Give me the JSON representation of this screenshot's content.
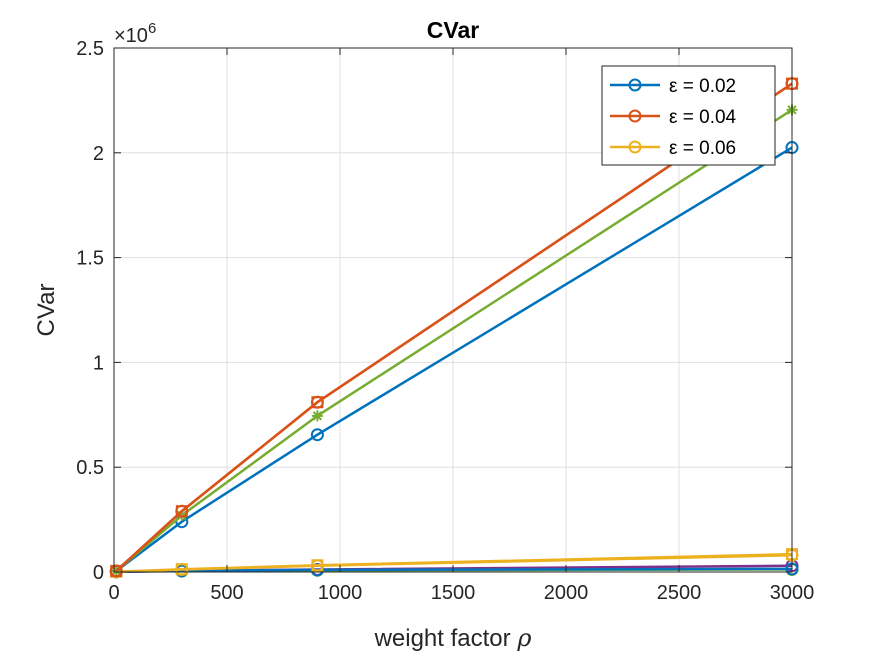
{
  "chart_data": {
    "type": "line",
    "title": "CVar",
    "xlabel": "weight factor",
    "xlabel_symbol": "ρ",
    "ylabel": "CVar",
    "y_multiplier_base": "×10",
    "y_multiplier_exp": "6",
    "xlim": [
      0,
      3000
    ],
    "ylim": [
      0,
      2.5
    ],
    "xticks": [
      0,
      500,
      1000,
      1500,
      2000,
      2500,
      3000
    ],
    "yticks": [
      0,
      0.5,
      1,
      1.5,
      2,
      2.5
    ],
    "grid": true,
    "legend_position": "top-right",
    "x": [
      10,
      300,
      900,
      3000
    ],
    "series": [
      {
        "name": "ε  = 0.02",
        "color": "#0072BD",
        "marker": "circle",
        "in_legend": true,
        "values": [
          0.005,
          0.24,
          0.655,
          2.025
        ]
      },
      {
        "name": "ε  = 0.04",
        "color": "#D95319",
        "marker": "circle",
        "in_legend": true,
        "values": [
          0.005,
          0.29,
          0.81,
          2.33
        ]
      },
      {
        "name": "ε  = 0.06",
        "color": "#EDB120",
        "marker": "circle",
        "in_legend": true,
        "values": [
          0.001,
          0.012,
          0.03,
          0.08
        ]
      },
      {
        "color": "#D95319",
        "marker": "square",
        "in_legend": false,
        "values": [
          0.005,
          0.29,
          0.81,
          2.33
        ]
      },
      {
        "color": "#77AC30",
        "marker": "asterisk",
        "in_legend": false,
        "values": [
          0.005,
          0.27,
          0.745,
          2.205
        ]
      },
      {
        "color": "#7E2F8E",
        "marker": "circle",
        "in_legend": false,
        "values": [
          0.001,
          0.006,
          0.012,
          0.03
        ]
      },
      {
        "color": "#77AC30",
        "marker": "circle",
        "in_legend": false,
        "values": [
          0.001,
          0.004,
          0.008,
          0.012
        ]
      },
      {
        "color": "#0072BD",
        "marker": "circle",
        "in_legend": false,
        "values": [
          0.001,
          0.006,
          0.01,
          0.015
        ]
      },
      {
        "color": "#EDB120",
        "marker": "square",
        "in_legend": false,
        "values": [
          0.001,
          0.013,
          0.032,
          0.085
        ]
      }
    ]
  }
}
